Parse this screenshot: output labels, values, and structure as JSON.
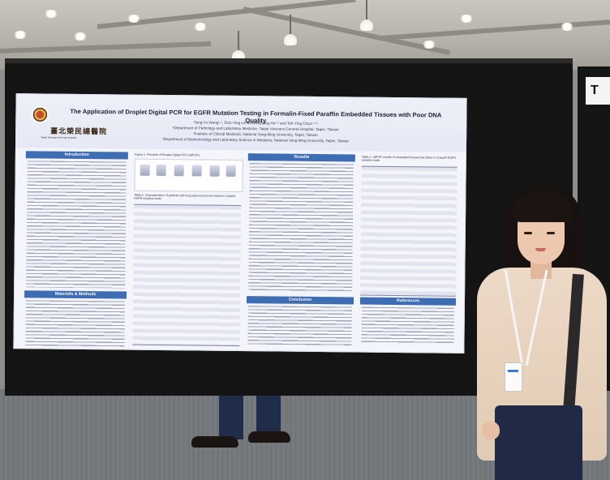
{
  "poster": {
    "title": "The Application of Droplet Digital PCR for EGFR Mutation Testing in Formalin-Fixed Paraffin Embedded Tissues with Poor DNA Quality",
    "authors": "Yang-Yu Wang¹·², Shin-Ying Lin², Hsiang-Ling Ho¹·² and Teh-Ying Chou¹·²·³",
    "affiliation_1": "¹Department of Pathology and Laboratory Medicine, Taipei Veterans General Hospital, Taipei, Taiwan",
    "affiliation_2": "²Institute of Clinical Medicine, National Yang-Ming University, Taipei, Taiwan",
    "affiliation_3": "³Department of Biotechnology and Laboratory Science in Medicine, National Yang-Ming University, Taipei, Taiwan",
    "logo_text": "臺北榮民總醫院",
    "logo_subtext": "Taipei Veterans General Hospital",
    "sections": {
      "introduction": "Introduction",
      "materials_methods": "Materials & Methods",
      "results": "Results",
      "conclusion": "Conclusion",
      "references": "References"
    },
    "figure_caption": "Figure 1. Principle of Droplet Digital PCR (ddPCR).",
    "table1_caption": "Table 1. Characteristics of patients with lung adenocarcinoma failed in Cobas® EGFR mutation tests",
    "table2_caption": "Table 2. ddPCR results of resampled tissues that failed in Cobas® EGFR mutation tests"
  },
  "background": {
    "board_label": "T"
  }
}
